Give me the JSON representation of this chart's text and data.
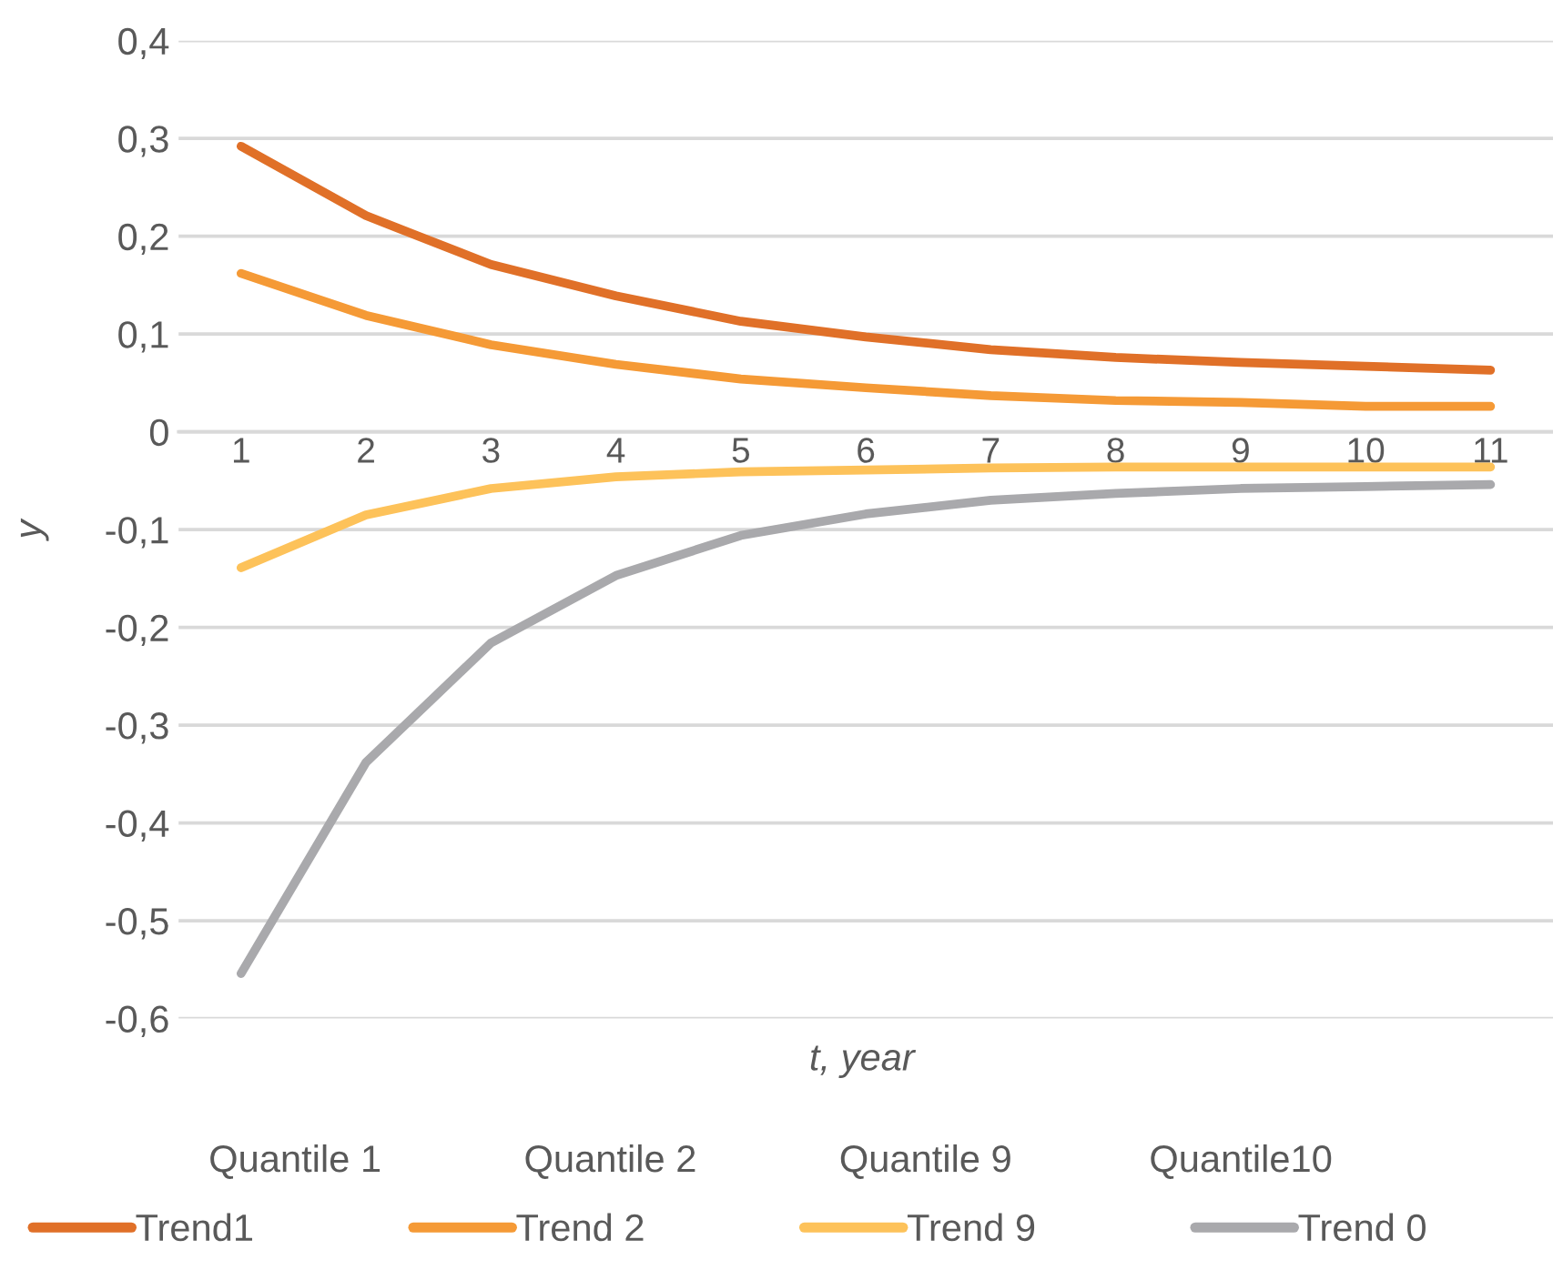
{
  "chart_data": {
    "type": "line",
    "xlabel": "t, year",
    "ylabel": "y",
    "categories": [
      "1",
      "2",
      "3",
      "4",
      "5",
      "6",
      "7",
      "8",
      "9",
      "10",
      "11"
    ],
    "series": [
      {
        "name": "Trend1",
        "color": "#e07028",
        "values": [
          0.292,
          0.221,
          0.171,
          0.139,
          0.113,
          0.097,
          0.084,
          0.076,
          0.071,
          0.067,
          0.063
        ]
      },
      {
        "name": "Trend 2",
        "color": "#f59a36",
        "values": [
          0.162,
          0.119,
          0.089,
          0.069,
          0.054,
          0.045,
          0.037,
          0.032,
          0.03,
          0.026,
          0.026
        ]
      },
      {
        "name": "Trend 9",
        "color": "#fdc25a",
        "values": [
          -0.139,
          -0.085,
          -0.058,
          -0.046,
          -0.041,
          -0.039,
          -0.037,
          -0.036,
          -0.036,
          -0.036,
          -0.036
        ]
      },
      {
        "name": "Trend 0",
        "color": "#a9a9ac",
        "values": [
          -0.554,
          -0.338,
          -0.216,
          -0.147,
          -0.106,
          -0.084,
          -0.07,
          -0.063,
          -0.058,
          -0.056,
          -0.054
        ]
      }
    ],
    "annotations": [
      "Quantile 1",
      "Quantile 2",
      "Quantile 9",
      "Quantile10"
    ],
    "ylim": [
      -0.6,
      0.4
    ],
    "yticks": [
      {
        "value": 0.4,
        "label": "0,4"
      },
      {
        "value": 0.3,
        "label": "0,3"
      },
      {
        "value": 0.2,
        "label": "0,2"
      },
      {
        "value": 0.1,
        "label": "0,1"
      },
      {
        "value": 0,
        "label": "0"
      },
      {
        "value": -0.1,
        "label": "-0,1"
      },
      {
        "value": -0.2,
        "label": "-0,2"
      },
      {
        "value": -0.3,
        "label": "-0,3"
      },
      {
        "value": -0.4,
        "label": "-0,4"
      },
      {
        "value": -0.5,
        "label": "-0,5"
      },
      {
        "value": -0.6,
        "label": "-0,6"
      }
    ],
    "grid": "y",
    "legend": "bottom",
    "marker": "none",
    "line_style": "solid"
  }
}
